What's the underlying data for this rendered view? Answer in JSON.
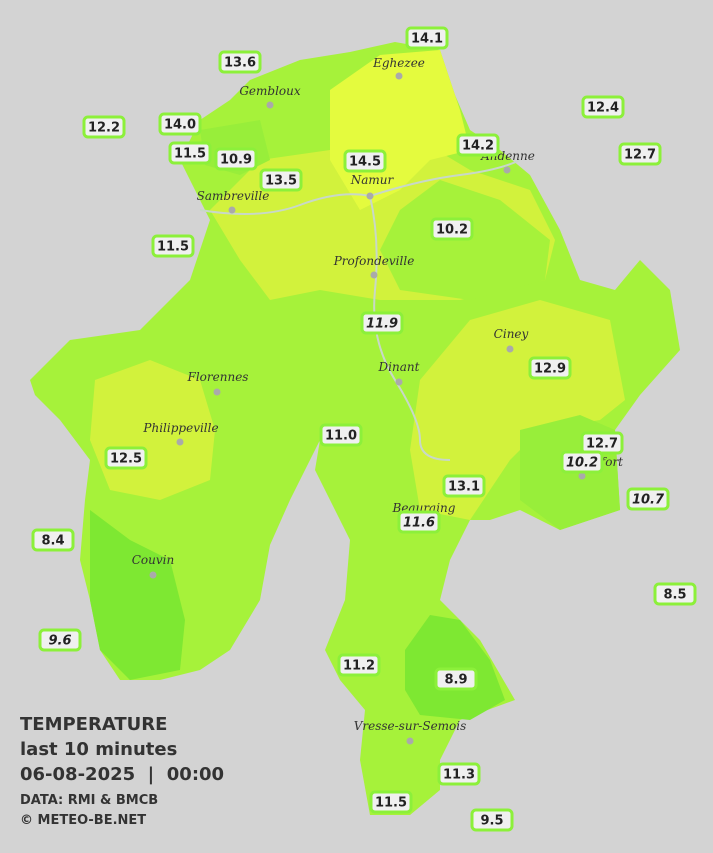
{
  "map": {
    "legend": {
      "title": "TEMPERATURE",
      "period": "last 10 minutes",
      "datetime": "06-08-2025  |  00:00",
      "source": "DATA: RMI & BMCB",
      "copyright": "© METEO-BE.NET"
    },
    "cities": [
      "Eghezee",
      "Gembloux",
      "Andenne",
      "Namur",
      "Sambreville",
      "Profondeville",
      "Ciney",
      "Florennes",
      "Dinant",
      "Philippeville",
      "Rochefort",
      "Beauraing",
      "Couvin",
      "Vresse-sur-Semois"
    ],
    "stations": [
      {
        "value": "14.1"
      },
      {
        "value": "13.6"
      },
      {
        "value": "12.2"
      },
      {
        "value": "14.0"
      },
      {
        "value": "12.4"
      },
      {
        "value": "11.5"
      },
      {
        "value": "10.9"
      },
      {
        "value": "14.5"
      },
      {
        "value": "14.2"
      },
      {
        "value": "12.7"
      },
      {
        "value": "13.5"
      },
      {
        "value": "10.2"
      },
      {
        "value": "11.5"
      },
      {
        "value": "11.9",
        "italic": true
      },
      {
        "value": "12.9"
      },
      {
        "value": "11.0"
      },
      {
        "value": "12.7"
      },
      {
        "value": "10.2",
        "italic": true
      },
      {
        "value": "12.5"
      },
      {
        "value": "13.1"
      },
      {
        "value": "10.7",
        "italic": true
      },
      {
        "value": "11.6",
        "italic": true
      },
      {
        "value": "8.4"
      },
      {
        "value": "8.5"
      },
      {
        "value": "9.6",
        "italic": true
      },
      {
        "value": "11.2"
      },
      {
        "value": "8.9"
      },
      {
        "value": "11.3"
      },
      {
        "value": "11.5"
      },
      {
        "value": "9.5"
      }
    ]
  }
}
